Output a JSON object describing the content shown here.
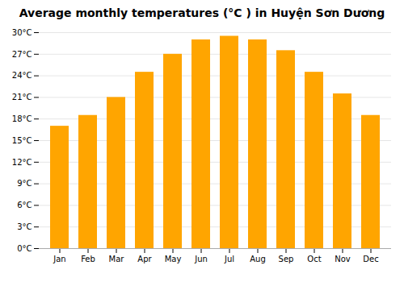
{
  "chart_data": {
    "type": "bar",
    "title": "Average monthly temperatures (°C ) in Huyện Sơn Dương",
    "categories": [
      "Jan",
      "Feb",
      "Mar",
      "Apr",
      "May",
      "Jun",
      "Jul",
      "Aug",
      "Sep",
      "Oct",
      "Nov",
      "Dec"
    ],
    "values": [
      17.0,
      18.5,
      21.0,
      24.5,
      27.0,
      29.0,
      29.5,
      29.0,
      27.5,
      24.5,
      21.5,
      18.5
    ],
    "color": "#FFA500",
    "ylim": [
      0,
      30
    ],
    "yticks": [
      {
        "value": 0,
        "label": "0°C"
      },
      {
        "value": 3,
        "label": "3°C"
      },
      {
        "value": 6,
        "label": "6°C"
      },
      {
        "value": 9,
        "label": "9°C"
      },
      {
        "value": 12,
        "label": "12°C"
      },
      {
        "value": 15,
        "label": "15°C"
      },
      {
        "value": 18,
        "label": "18°C"
      },
      {
        "value": 21,
        "label": "21°C"
      },
      {
        "value": 24,
        "label": "24°C"
      },
      {
        "value": 27,
        "label": "27°C"
      },
      {
        "value": 30,
        "label": "30°C"
      }
    ],
    "grid": true
  }
}
